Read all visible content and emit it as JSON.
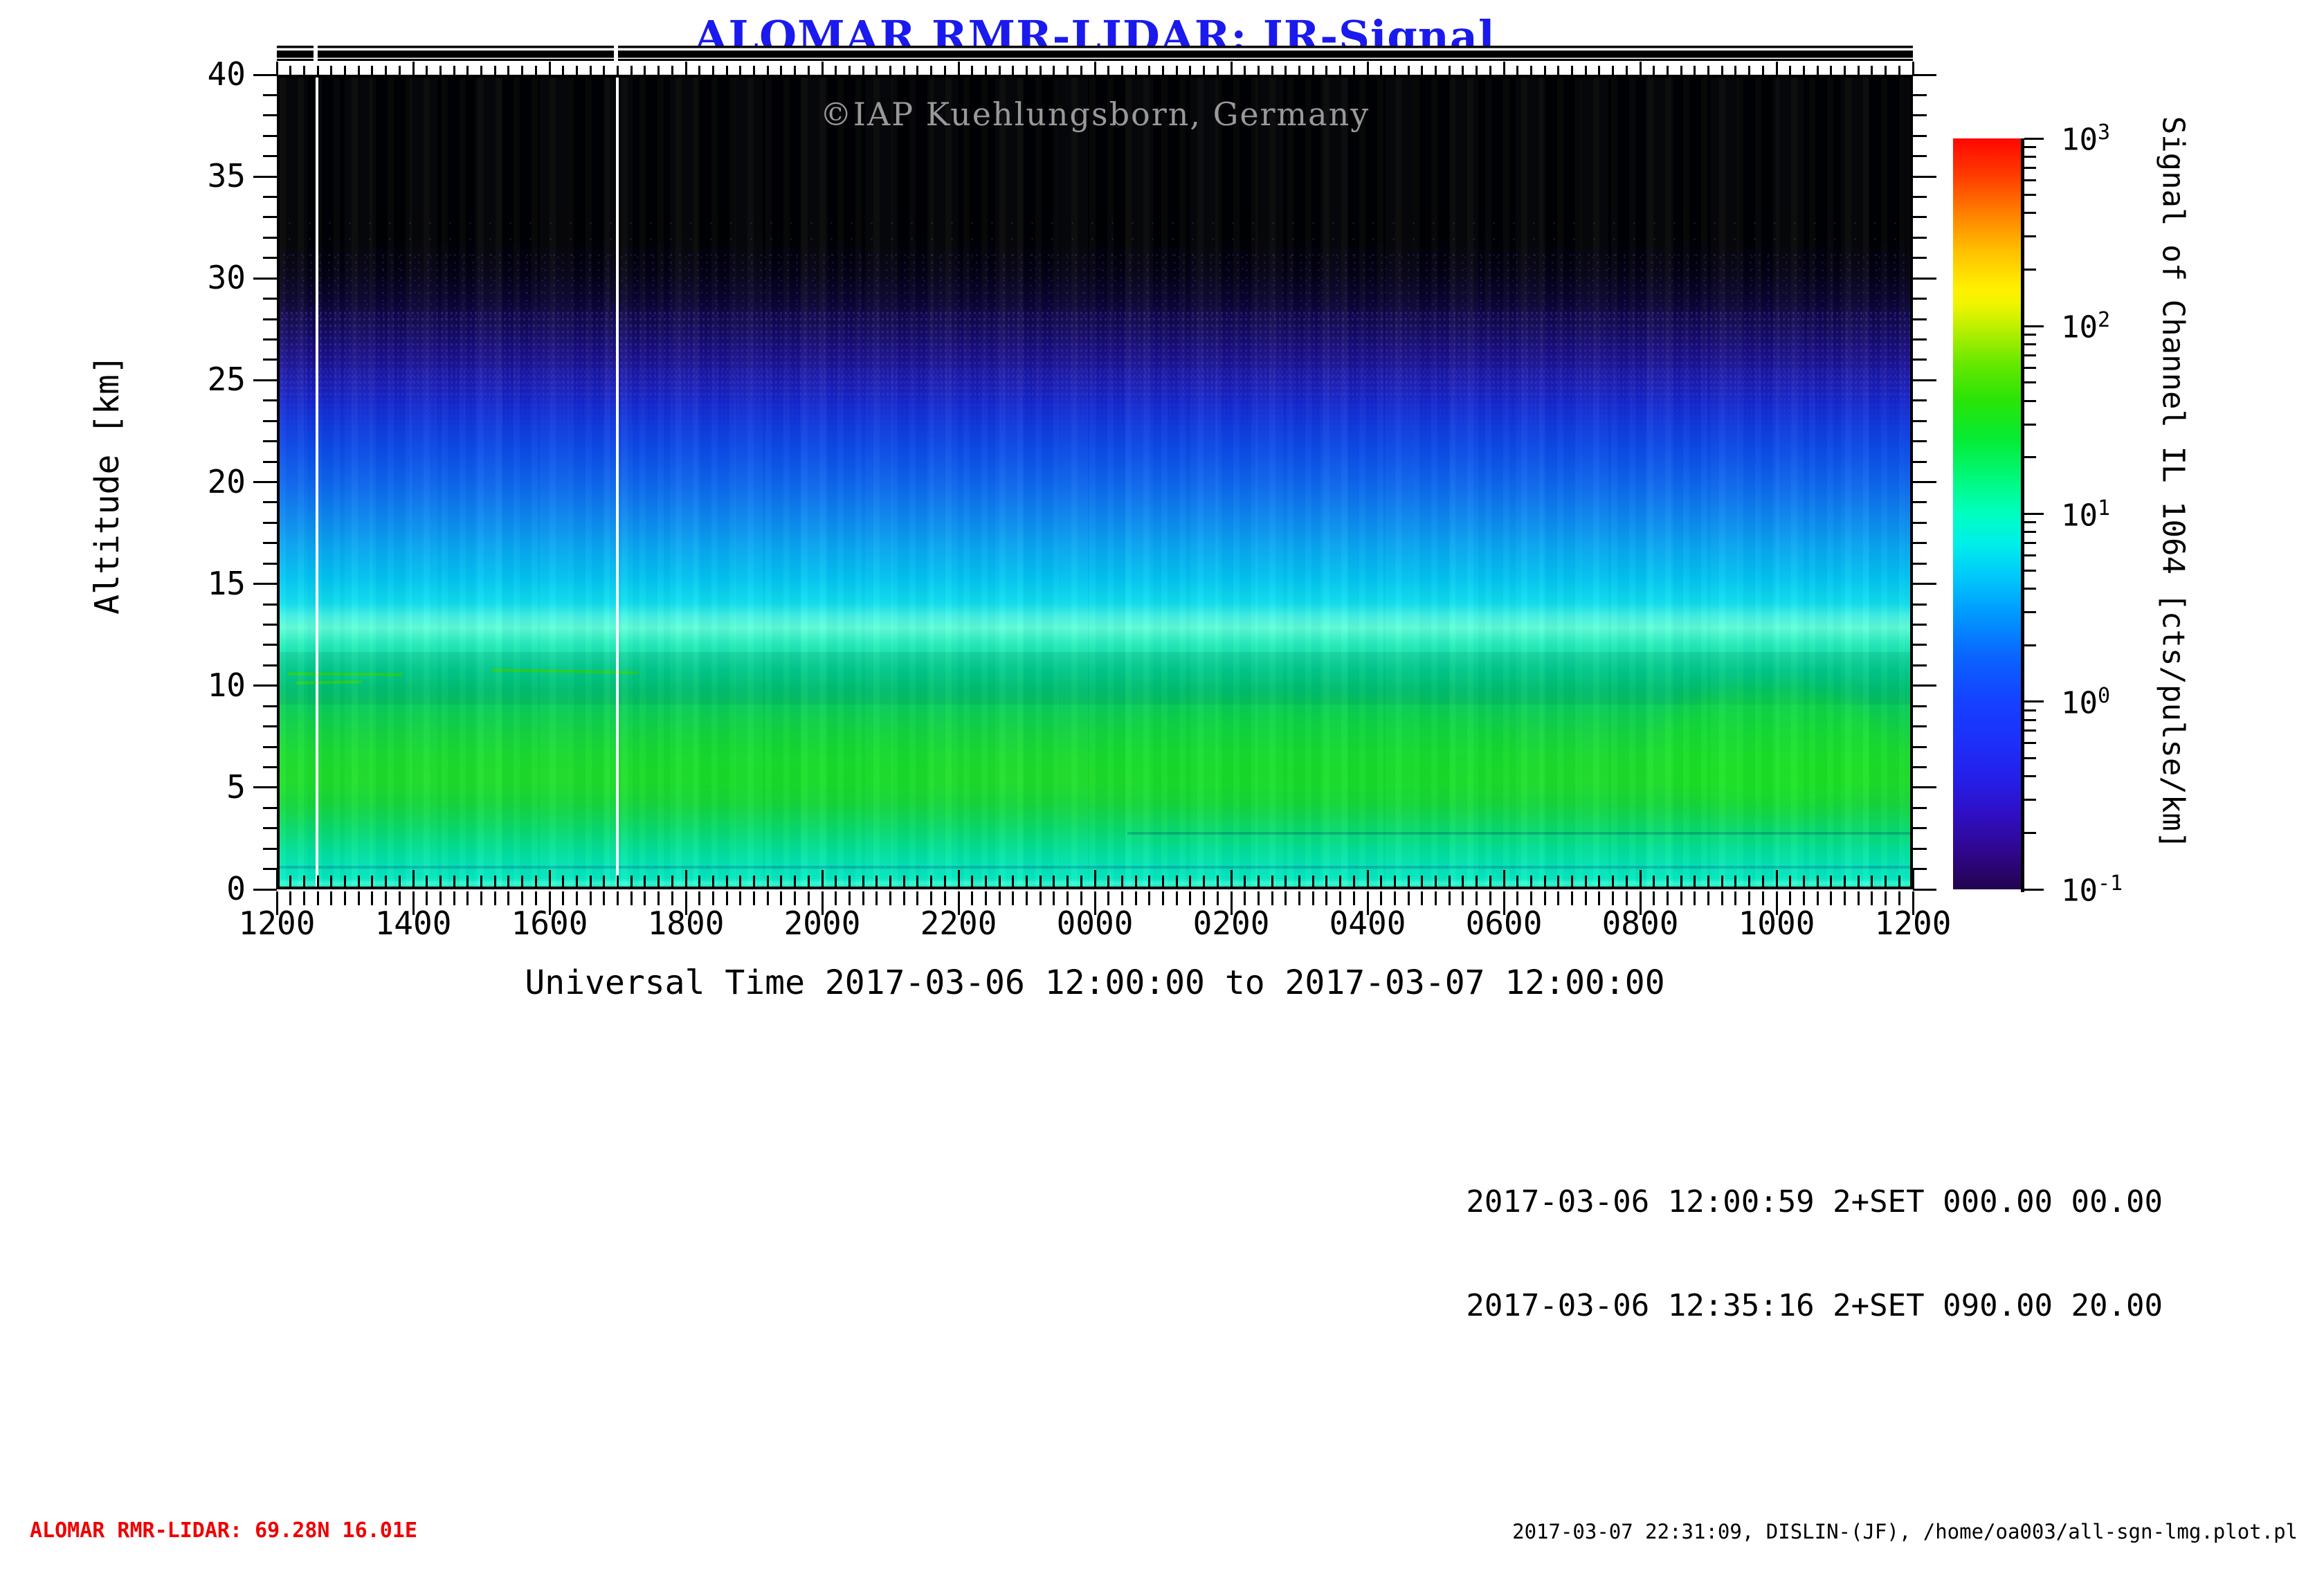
{
  "title": "ALOMAR RMR-LIDAR: IR-Signal",
  "watermark": "©IAP Kuehlungsborn, Germany",
  "x_axis": {
    "title": "Universal Time 2017-03-06 12:00:00 to 2017-03-07 12:00:00",
    "tick_labels": [
      "1200",
      "1400",
      "1600",
      "1800",
      "2000",
      "2200",
      "0000",
      "0200",
      "0400",
      "0600",
      "0800",
      "1000",
      "1200"
    ]
  },
  "y_axis": {
    "title": "Altitude [km]",
    "tick_labels": [
      "40",
      "35",
      "30",
      "25",
      "20",
      "15",
      "10",
      "5",
      "0"
    ]
  },
  "colorbar": {
    "title": "Signal of Channel IL 1064 [cts/pulse/km]",
    "tick_labels": [
      {
        "base": "10",
        "exp": "3"
      },
      {
        "base": "10",
        "exp": "2"
      },
      {
        "base": "10",
        "exp": "1"
      },
      {
        "base": "10",
        "exp": "0"
      },
      {
        "base": "10",
        "exp": "-1"
      }
    ],
    "gradient_stops": [
      {
        "pct": 0,
        "color": "#22044e"
      },
      {
        "pct": 5,
        "color": "#30068c"
      },
      {
        "pct": 10,
        "color": "#2f0fc4"
      },
      {
        "pct": 15,
        "color": "#2420ea"
      },
      {
        "pct": 20,
        "color": "#1c30fa"
      },
      {
        "pct": 25,
        "color": "#1540ff"
      },
      {
        "pct": 31,
        "color": "#0a64ff"
      },
      {
        "pct": 37,
        "color": "#009cff"
      },
      {
        "pct": 42,
        "color": "#00ccfa"
      },
      {
        "pct": 46,
        "color": "#00eeea"
      },
      {
        "pct": 50,
        "color": "#00ffc0"
      },
      {
        "pct": 55,
        "color": "#00f878"
      },
      {
        "pct": 60,
        "color": "#06ec34"
      },
      {
        "pct": 65,
        "color": "#28e408"
      },
      {
        "pct": 70,
        "color": "#66e800"
      },
      {
        "pct": 75,
        "color": "#c0f000"
      },
      {
        "pct": 78,
        "color": "#f0f400"
      },
      {
        "pct": 80,
        "color": "#fff000"
      },
      {
        "pct": 85,
        "color": "#ffc000"
      },
      {
        "pct": 90,
        "color": "#ff8000"
      },
      {
        "pct": 95,
        "color": "#ff3c00"
      },
      {
        "pct": 100,
        "color": "#ff0600"
      }
    ]
  },
  "annotations": {
    "line1": "2017-03-06 12:00:59 2+SET 000.00 00.00",
    "line2": "2017-03-06 12:35:16 2+SET 090.00 20.00"
  },
  "footer": {
    "left": "ALOMAR RMR-LIDAR: 69.28N 16.01E",
    "right": "2017-03-07 22:31:09, DISLIN-(JF), /home/oa003/all-sgn-lmg.plot.pl"
  },
  "colors": {
    "title_blue": "#1a1aee",
    "footer_red": "#ee0000",
    "watermark_gray": "#999999"
  },
  "chart_data": {
    "type": "heatmap",
    "title": "ALOMAR RMR-LIDAR: IR-Signal",
    "xlabel": "Universal Time 2017-03-06 12:00:00 to 2017-03-07 12:00:00",
    "ylabel": "Altitude [km]",
    "colorbar_label": "Signal of Channel IL 1064 [cts/pulse/km]",
    "x_tick_labels": [
      "1200",
      "1400",
      "1600",
      "1800",
      "2000",
      "2200",
      "0000",
      "0200",
      "0400",
      "0600",
      "0800",
      "1000",
      "1200"
    ],
    "x_span_hours": 24,
    "x_minor_ticks_per_major": 10,
    "ylim": [
      0,
      40
    ],
    "y_major_step_km": 5,
    "y_minor_step_km": 1,
    "color_scale": "log10",
    "color_range": [
      0.1,
      1000
    ],
    "colormap": "rainbow (dark violet -> blue -> cyan -> green -> yellow -> orange -> red)",
    "altitude_profile_approx": [
      {
        "alt_km": 0,
        "signal_cts_pulse_km": 6
      },
      {
        "alt_km": 2,
        "signal_cts_pulse_km": 7
      },
      {
        "alt_km": 5,
        "signal_cts_pulse_km": 12
      },
      {
        "alt_km": 8,
        "signal_cts_pulse_km": 12
      },
      {
        "alt_km": 10,
        "signal_cts_pulse_km": 8
      },
      {
        "alt_km": 13,
        "signal_cts_pulse_km": 4
      },
      {
        "alt_km": 15,
        "signal_cts_pulse_km": 2.5
      },
      {
        "alt_km": 17,
        "signal_cts_pulse_km": 1.5
      },
      {
        "alt_km": 20,
        "signal_cts_pulse_km": 0.7
      },
      {
        "alt_km": 22,
        "signal_cts_pulse_km": 0.4
      },
      {
        "alt_km": 24,
        "signal_cts_pulse_km": 0.25
      },
      {
        "alt_km": 26,
        "signal_cts_pulse_km": 0.15
      },
      {
        "alt_km": 28,
        "signal_cts_pulse_km": 0.11
      },
      {
        "alt_km": 30,
        "signal_cts_pulse_km": 0.1
      },
      {
        "alt_km": 40,
        "signal_cts_pulse_km": 0.1
      }
    ],
    "y_gradient_stops": [
      {
        "pct": 0,
        "color": "#000000"
      },
      {
        "pct": 20,
        "color": "#000000"
      },
      {
        "pct": 24,
        "color": "#030110"
      },
      {
        "pct": 28,
        "color": "#0a0430"
      },
      {
        "pct": 31,
        "color": "#120a54"
      },
      {
        "pct": 34,
        "color": "#180f80"
      },
      {
        "pct": 37,
        "color": "#1a19a8"
      },
      {
        "pct": 40,
        "color": "#1626cc"
      },
      {
        "pct": 43,
        "color": "#0f3ade"
      },
      {
        "pct": 46,
        "color": "#0c4ce8"
      },
      {
        "pct": 50,
        "color": "#0d66ee"
      },
      {
        "pct": 54,
        "color": "#0c86f0"
      },
      {
        "pct": 58,
        "color": "#08a8f2"
      },
      {
        "pct": 62,
        "color": "#02c8f2"
      },
      {
        "pct": 65,
        "color": "#10e0ee"
      },
      {
        "pct": 66.5,
        "color": "#44f4e4"
      },
      {
        "pct": 68,
        "color": "#60ffd8"
      },
      {
        "pct": 70,
        "color": "#28f0bc"
      },
      {
        "pct": 73,
        "color": "#04dc94"
      },
      {
        "pct": 75.5,
        "color": "#00d074"
      },
      {
        "pct": 78,
        "color": "#0ad156"
      },
      {
        "pct": 81,
        "color": "#14d83e"
      },
      {
        "pct": 84,
        "color": "#1cdf2c"
      },
      {
        "pct": 87,
        "color": "#1ee026"
      },
      {
        "pct": 90,
        "color": "#15da3c"
      },
      {
        "pct": 93,
        "color": "#08de6e"
      },
      {
        "pct": 96,
        "color": "#02e4a2"
      },
      {
        "pct": 99,
        "color": "#04ecc2"
      },
      {
        "pct": 99.6,
        "color": "#38ffd6"
      },
      {
        "pct": 100,
        "color": "#18f0c4"
      }
    ],
    "data_gap_times_ut": [
      "12:33",
      "16:58"
    ],
    "features": [
      "black background (no signal) above ~30 km with sparse violet noise speckles 24-31 km",
      "blue-to-cyan gradient 14-25 km",
      "bright cyan band 13-14 km",
      "bright green tropospheric band 3-9 km, strongest 08:30-11:30 UT",
      "thin green aerosol streaks near 10 km between 12:00-16:00 UT",
      "two white vertical data-gap lines with matching gaps in laser status bar above plot"
    ]
  }
}
